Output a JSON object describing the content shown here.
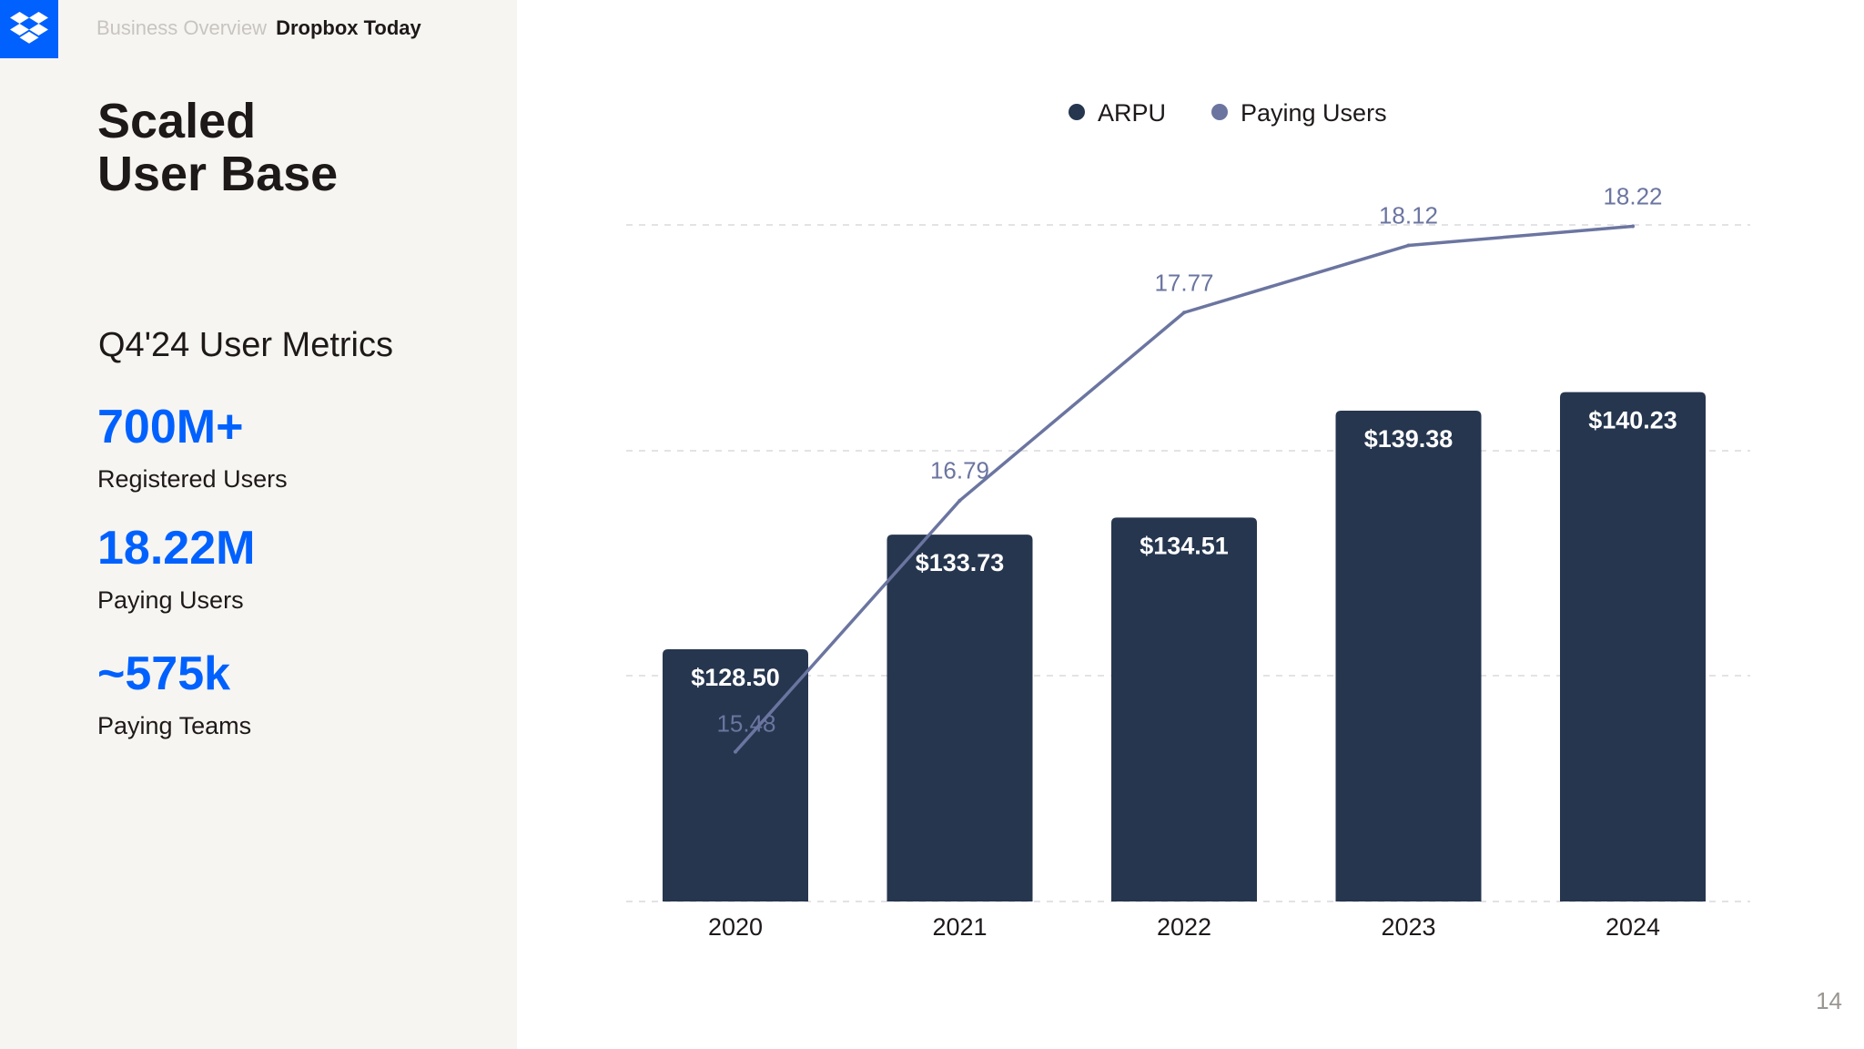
{
  "header": {
    "section": "Business Overview",
    "current": "Dropbox Today",
    "logo_icon": "dropbox-logo-icon"
  },
  "page": {
    "title_line1": "Scaled",
    "title_line2": "User Base",
    "page_number": "14"
  },
  "metrics": {
    "heading": "Q4'24 User Metrics",
    "items": [
      {
        "value": "700M+",
        "label": "Registered Users"
      },
      {
        "value": "18.22M",
        "label": "Paying Users"
      },
      {
        "value": "~575k",
        "label": "Paying Teams"
      }
    ]
  },
  "colors": {
    "brand_blue": "#0061fe",
    "bar": "#26364f",
    "line": "#6b75a0",
    "text": "#1e1919"
  },
  "chart_data": {
    "type": "bar",
    "title": "",
    "xlabel": "",
    "ylabel": "",
    "categories": [
      "2020",
      "2021",
      "2022",
      "2023",
      "2024"
    ],
    "legend": [
      "ARPU",
      "Paying Users"
    ],
    "series": [
      {
        "name": "ARPU",
        "type": "bar",
        "values": [
          128.5,
          133.73,
          134.51,
          139.38,
          140.23
        ],
        "labels": [
          "$128.50",
          "$133.73",
          "$134.51",
          "$139.38",
          "$140.23"
        ],
        "ylim": [
          117,
          141.5
        ]
      },
      {
        "name": "Paying Users",
        "type": "line",
        "values": [
          15.48,
          16.79,
          17.77,
          18.12,
          18.22
        ],
        "labels": [
          "15.48",
          "16.79",
          "17.77",
          "18.12",
          "18.22"
        ],
        "ylim": [
          14.7,
          18.45
        ]
      }
    ],
    "legend_position": "top",
    "grid": true
  }
}
